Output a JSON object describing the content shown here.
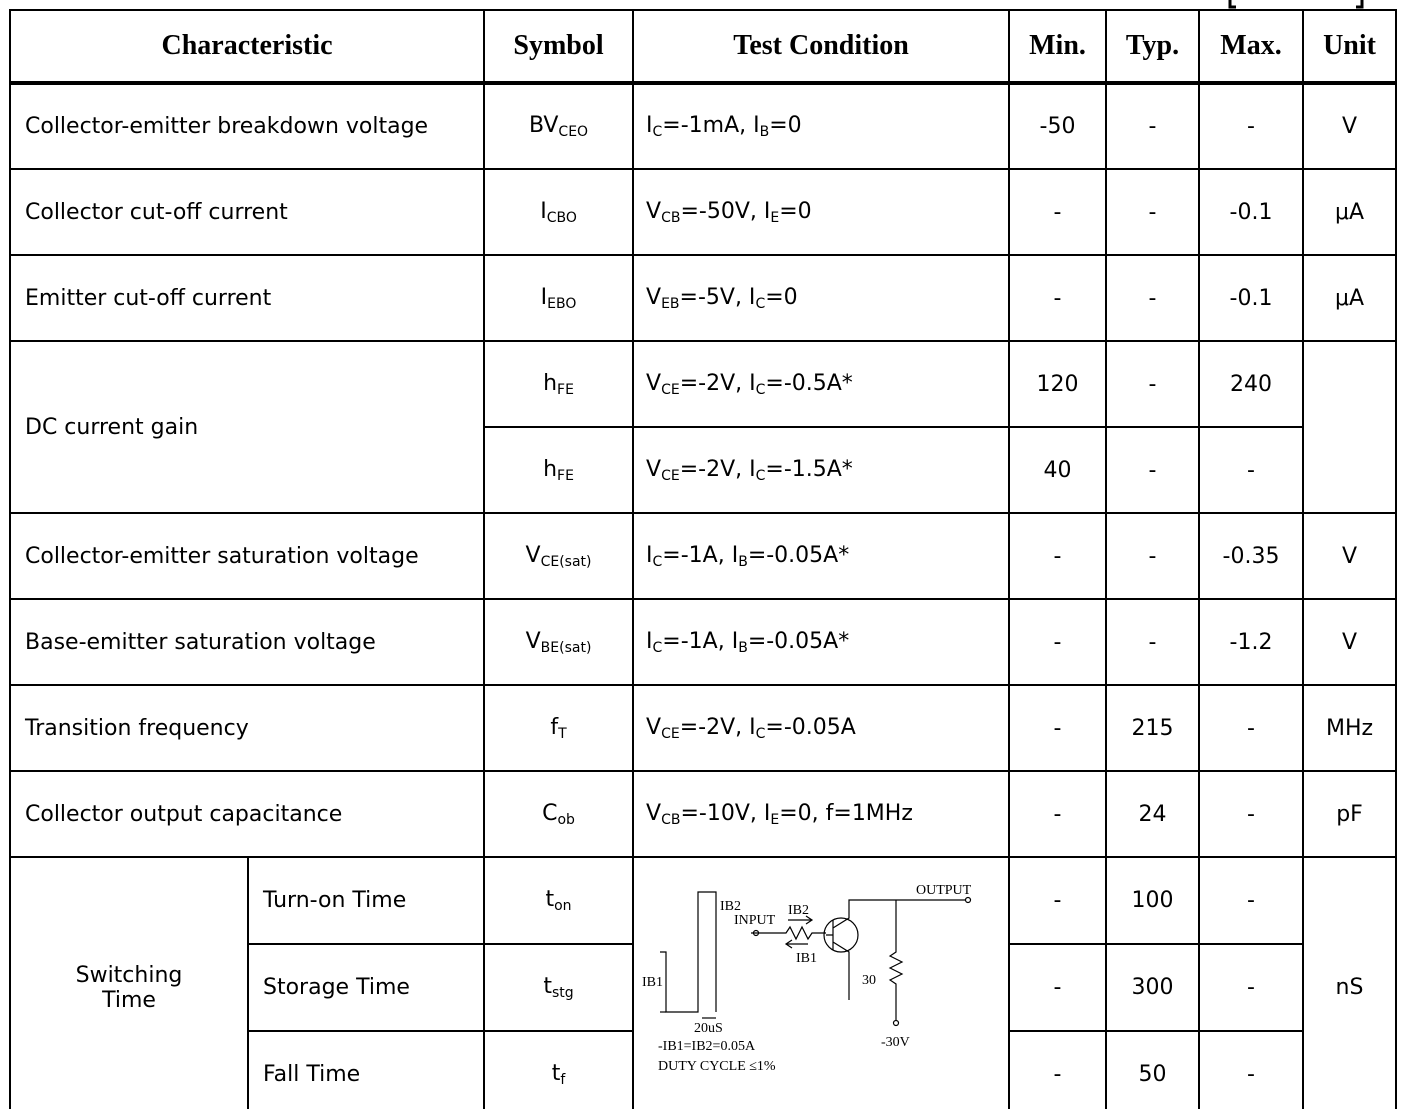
{
  "header": [
    "Characteristic",
    "Symbol",
    "Test Condition",
    "Min.",
    "Typ.",
    "Max.",
    "Unit"
  ],
  "rows": [
    {
      "characteristic": "Collector-emitter breakdown voltage",
      "unit": "V",
      "items": [
        {
          "symbol": [
            "BV",
            "CEO"
          ],
          "condition": [
            "I",
            "C",
            "=-1mA, I",
            "B",
            "=0"
          ],
          "min": "-50",
          "typ": "-",
          "max": "-"
        }
      ]
    },
    {
      "characteristic": "Collector cut-off current",
      "unit": "μA",
      "items": [
        {
          "symbol": [
            "I",
            "CBO"
          ],
          "condition": [
            "V",
            "CB",
            "=-50V, I",
            "E",
            "=0"
          ],
          "min": "-",
          "typ": "-",
          "max": "-0.1"
        }
      ]
    },
    {
      "characteristic": "Emitter cut-off current",
      "unit": "μA",
      "items": [
        {
          "symbol": [
            "I",
            "EBO"
          ],
          "condition": [
            "V",
            "EB",
            "=-5V, I",
            "C",
            "=0"
          ],
          "min": "-",
          "typ": "-",
          "max": "-0.1"
        }
      ]
    },
    {
      "characteristic": "DC current gain",
      "items": [
        {
          "symbol": [
            "h",
            "FE"
          ],
          "condition": [
            "V",
            "CE",
            "=-2V, I",
            "C",
            "=-0.5A*"
          ],
          "min": "120",
          "typ": "-",
          "max": "240"
        },
        {
          "symbol": [
            "h",
            "FE"
          ],
          "condition": [
            "V",
            "CE",
            "=-2V, I",
            "C",
            "=-1.5A*"
          ],
          "min": "40",
          "typ": "-",
          "max": "-"
        }
      ]
    },
    {
      "characteristic": "Collector-emitter saturation voltage",
      "unit": "V",
      "items": [
        {
          "symbol": [
            "V",
            "CE(sat)"
          ],
          "condition": [
            "I",
            "C",
            "=-1A, I",
            "B",
            "=-0.05A*"
          ],
          "min": "-",
          "typ": "-",
          "max": "-0.35"
        }
      ]
    },
    {
      "characteristic": "Base-emitter saturation voltage",
      "unit": "V",
      "items": [
        {
          "symbol": [
            "V",
            "BE(sat)"
          ],
          "condition": [
            "I",
            "C",
            "=-1A, I",
            "B",
            "=-0.05A*"
          ],
          "min": "-",
          "typ": "-",
          "max": "-1.2"
        }
      ]
    },
    {
      "characteristic": "Transition frequency",
      "unit": "MHz",
      "items": [
        {
          "symbol": [
            "f",
            "T"
          ],
          "condition": [
            "V",
            "CE",
            "=-2V, I",
            "C",
            "=-0.05A"
          ],
          "min": "-",
          "typ": "215",
          "max": "-"
        }
      ]
    },
    {
      "characteristic": "Collector output capacitance",
      "unit": "pF",
      "items": [
        {
          "symbol": [
            "C",
            "ob"
          ],
          "condition": [
            "V",
            "CB",
            "=-10V, I",
            "E",
            "=0, f=1MHz"
          ],
          "min": "-",
          "typ": "24",
          "max": "-"
        }
      ]
    },
    {
      "characteristic": "Switching Time",
      "unit": "nS",
      "diagram": {
        "ib2": "IB2",
        "input": "INPUT",
        "ib2_arrow": "IB2",
        "ib1_arrow": "IB1",
        "output": "OUTPUT",
        "ib1": "IB1",
        "pulse_width": "20uS",
        "resistor": "30",
        "supply": "-30V",
        "note": "-IB1=IB2=0.05A",
        "duty": "DUTY CYCLE ≤1%"
      },
      "items": [
        {
          "name": "Turn-on Time",
          "symbol": [
            "t",
            "on"
          ],
          "min": "-",
          "typ": "100",
          "max": "-"
        },
        {
          "name": "Storage Time",
          "symbol": [
            "t",
            "stg"
          ],
          "min": "-",
          "typ": "300",
          "max": "-"
        },
        {
          "name": "Fall Time",
          "symbol": [
            "t",
            "f"
          ],
          "min": "-",
          "typ": "50",
          "max": "-"
        }
      ]
    }
  ]
}
